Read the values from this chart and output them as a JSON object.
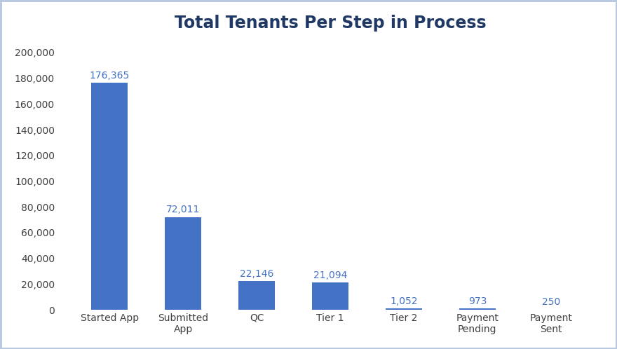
{
  "title": "Total Tenants Per Step in Process",
  "categories": [
    "Started App",
    "Submitted\nApp",
    "QC",
    "Tier 1",
    "Tier 2",
    "Payment\nPending",
    "Payment\nSent"
  ],
  "values": [
    176365,
    72011,
    22146,
    21094,
    1052,
    973,
    250
  ],
  "labels": [
    "176,365",
    "72,011",
    "22,146",
    "21,094",
    "1,052",
    "973",
    "250"
  ],
  "bar_color": "#4472C4",
  "background_color": "#FFFFFF",
  "outer_border_color": "#B8C9E0",
  "ylim": [
    0,
    210000
  ],
  "yticks": [
    0,
    20000,
    40000,
    60000,
    80000,
    100000,
    120000,
    140000,
    160000,
    180000,
    200000
  ],
  "title_fontsize": 17,
  "label_fontsize": 10,
  "tick_fontsize": 10,
  "bar_width": 0.5,
  "title_color": "#1F3864",
  "label_color": "#4472C4",
  "tick_color": "#404040"
}
